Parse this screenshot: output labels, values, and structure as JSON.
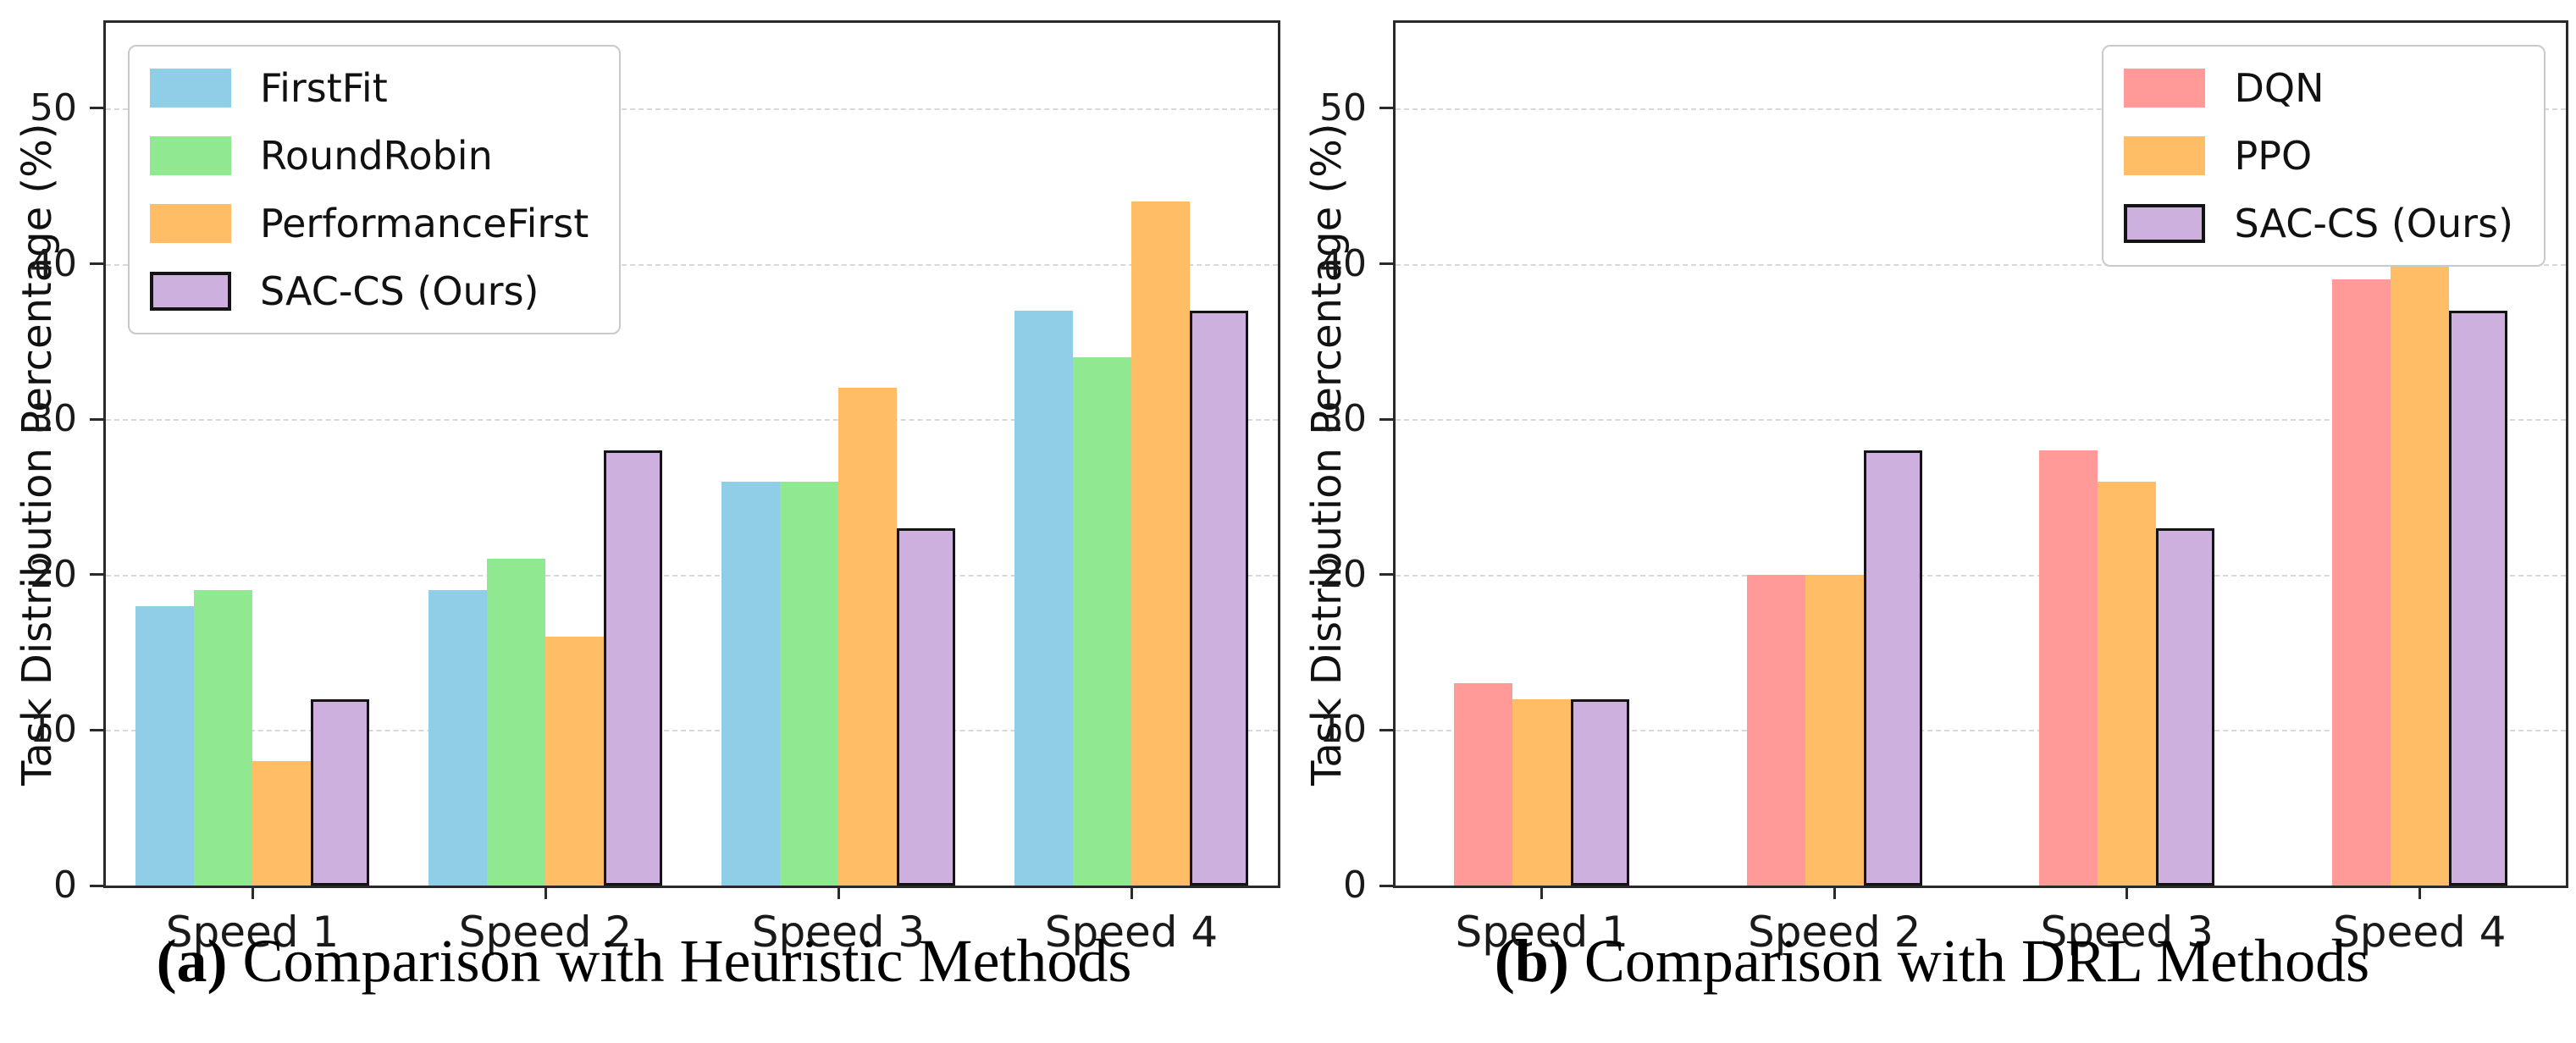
{
  "captions": [
    {
      "label": "(a)",
      "text": " Comparison with Heuristic Methods"
    },
    {
      "label": "(b)",
      "text": " Comparison with DRL Methods"
    }
  ],
  "chart_data": [
    {
      "type": "bar",
      "title": "",
      "categories": [
        "Speed 1",
        "Speed 2",
        "Speed 3",
        "Speed 4"
      ],
      "series": [
        {
          "name": "FirstFit",
          "color": "#8FCEE6",
          "edge": false,
          "values": [
            18,
            19,
            26,
            37
          ]
        },
        {
          "name": "RoundRobin",
          "color": "#90E890",
          "edge": false,
          "values": [
            19,
            21,
            26,
            34
          ]
        },
        {
          "name": "PerformanceFirst",
          "color": "#FFBE66",
          "edge": false,
          "values": [
            8,
            16,
            32,
            44
          ]
        },
        {
          "name": "SAC-CS (Ours)",
          "color": "#CDB0DE",
          "edge": true,
          "values": [
            12,
            28,
            23,
            37
          ]
        }
      ],
      "xlabel": "",
      "ylabel": "Task Distribution Percentage (%)",
      "yticks": [
        0,
        10,
        20,
        30,
        40,
        50
      ],
      "ylim": [
        0,
        55.5
      ],
      "grid": "horizontal-dashed",
      "legend_position": "upper-left"
    },
    {
      "type": "bar",
      "title": "",
      "categories": [
        "Speed 1",
        "Speed 2",
        "Speed 3",
        "Speed 4"
      ],
      "series": [
        {
          "name": "DQN",
          "color": "#FF9A98",
          "edge": false,
          "values": [
            13,
            20,
            28,
            39
          ]
        },
        {
          "name": "PPO",
          "color": "#FFBE66",
          "edge": false,
          "values": [
            12,
            20,
            26,
            40
          ]
        },
        {
          "name": "SAC-CS (Ours)",
          "color": "#CDB0DE",
          "edge": true,
          "values": [
            12,
            28,
            23,
            37
          ]
        }
      ],
      "xlabel": "",
      "ylabel": "Task Distribution Percentage (%)",
      "yticks": [
        0,
        10,
        20,
        30,
        40,
        50
      ],
      "ylim": [
        0,
        55.5
      ],
      "grid": "horizontal-dashed",
      "legend_position": "upper-right"
    }
  ],
  "colors": {
    "bar_edge": "#141414",
    "grid": "#d8d8d8",
    "spine": "#2a2a2a",
    "text": "#111111",
    "legend_border": "#c9c9c9",
    "background": "#ffffff"
  }
}
